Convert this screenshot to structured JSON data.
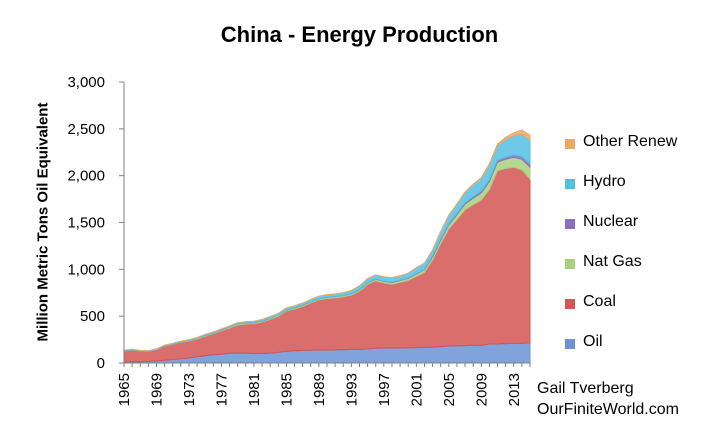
{
  "chart_data": {
    "type": "area",
    "stacked": true,
    "title": "China - Energy Production",
    "xlabel": "",
    "ylabel": "Million Metric Tons Oil Equivalent",
    "x": [
      1965,
      1966,
      1967,
      1968,
      1969,
      1970,
      1971,
      1972,
      1973,
      1974,
      1975,
      1976,
      1977,
      1978,
      1979,
      1980,
      1981,
      1982,
      1983,
      1984,
      1985,
      1986,
      1987,
      1988,
      1989,
      1990,
      1991,
      1992,
      1993,
      1994,
      1995,
      1996,
      1997,
      1998,
      1999,
      2000,
      2001,
      2002,
      2003,
      2004,
      2005,
      2006,
      2007,
      2008,
      2009,
      2010,
      2011,
      2012,
      2013,
      2014,
      2015
    ],
    "x_tick_labels": [
      "1965",
      "1969",
      "1973",
      "1977",
      "1981",
      "1985",
      "1989",
      "1993",
      "1997",
      "2001",
      "2005",
      "2009",
      "2013"
    ],
    "ylim": [
      0,
      3000
    ],
    "y_ticks": [
      0,
      500,
      1000,
      1500,
      2000,
      2500,
      3000
    ],
    "y_tick_labels": [
      "0",
      "500",
      "1,000",
      "1,500",
      "2,000",
      "2,500",
      "3,000"
    ],
    "grid": false,
    "legend_position": "right",
    "series": [
      {
        "name": "Oil",
        "color": "#6b93d6",
        "values": [
          12,
          15,
          14,
          16,
          22,
          30,
          38,
          45,
          54,
          65,
          77,
          87,
          94,
          104,
          106,
          106,
          101,
          102,
          106,
          114,
          125,
          131,
          134,
          137,
          138,
          138,
          140,
          142,
          145,
          146,
          150,
          158,
          160,
          161,
          160,
          162,
          164,
          167,
          170,
          175,
          181,
          183,
          186,
          190,
          189,
          203,
          203,
          207,
          210,
          211,
          215
        ]
      },
      {
        "name": "Coal",
        "color": "#d45552",
        "values": [
          118,
          125,
          112,
          108,
          120,
          150,
          160,
          176,
          180,
          190,
          210,
          225,
          250,
          270,
          300,
          310,
          320,
          335,
          360,
          385,
          430,
          445,
          470,
          505,
          535,
          550,
          555,
          565,
          580,
          620,
          690,
          720,
          695,
          680,
          700,
          720,
          760,
          800,
          930,
          1100,
          1250,
          1350,
          1450,
          1500,
          1550,
          1650,
          1850,
          1870,
          1880,
          1850,
          1750
        ]
      },
      {
        "name": "Nat Gas",
        "color": "#a9d07e",
        "values": [
          1,
          1,
          1,
          1,
          2,
          3,
          3,
          4,
          5,
          6,
          7,
          8,
          9,
          10,
          11,
          11,
          10,
          10,
          10,
          10,
          11,
          12,
          12,
          12,
          13,
          13,
          13,
          13,
          14,
          15,
          15,
          17,
          18,
          19,
          21,
          23,
          26,
          28,
          31,
          36,
          44,
          52,
          62,
          70,
          77,
          86,
          93,
          98,
          106,
          114,
          125
        ]
      },
      {
        "name": "Nuclear",
        "color": "#8b6fc1",
        "values": [
          0,
          0,
          0,
          0,
          0,
          0,
          0,
          0,
          0,
          0,
          0,
          0,
          0,
          0,
          0,
          0,
          0,
          0,
          0,
          0,
          0,
          0,
          0,
          0,
          0,
          0,
          0,
          0,
          0,
          3,
          3,
          3,
          3,
          3,
          3,
          4,
          4,
          5,
          10,
          11,
          12,
          12,
          14,
          15,
          16,
          17,
          20,
          22,
          25,
          30,
          38
        ]
      },
      {
        "name": "Hydro",
        "color": "#54bfe1",
        "values": [
          5,
          6,
          6,
          6,
          6,
          7,
          8,
          8,
          9,
          10,
          11,
          11,
          11,
          12,
          13,
          14,
          15,
          17,
          19,
          20,
          21,
          22,
          23,
          25,
          27,
          29,
          29,
          30,
          35,
          40,
          43,
          43,
          44,
          48,
          46,
          50,
          63,
          65,
          64,
          80,
          90,
          98,
          110,
          130,
          140,
          160,
          155,
          190,
          205,
          240,
          250
        ]
      },
      {
        "name": "Other Renew",
        "color": "#f0a665",
        "values": [
          0,
          0,
          0,
          0,
          0,
          0,
          0,
          0,
          0,
          0,
          0,
          0,
          0,
          0,
          0,
          0,
          0,
          0,
          0,
          0,
          0,
          0,
          0,
          0,
          0,
          0,
          0,
          0,
          0,
          0,
          0,
          0,
          0,
          0,
          0,
          0,
          1,
          1,
          1,
          2,
          2,
          3,
          4,
          5,
          7,
          12,
          17,
          23,
          32,
          42,
          55
        ]
      }
    ]
  },
  "credit": {
    "line1": "Gail Tverberg",
    "line2": "OurFiniteWorld.com"
  }
}
